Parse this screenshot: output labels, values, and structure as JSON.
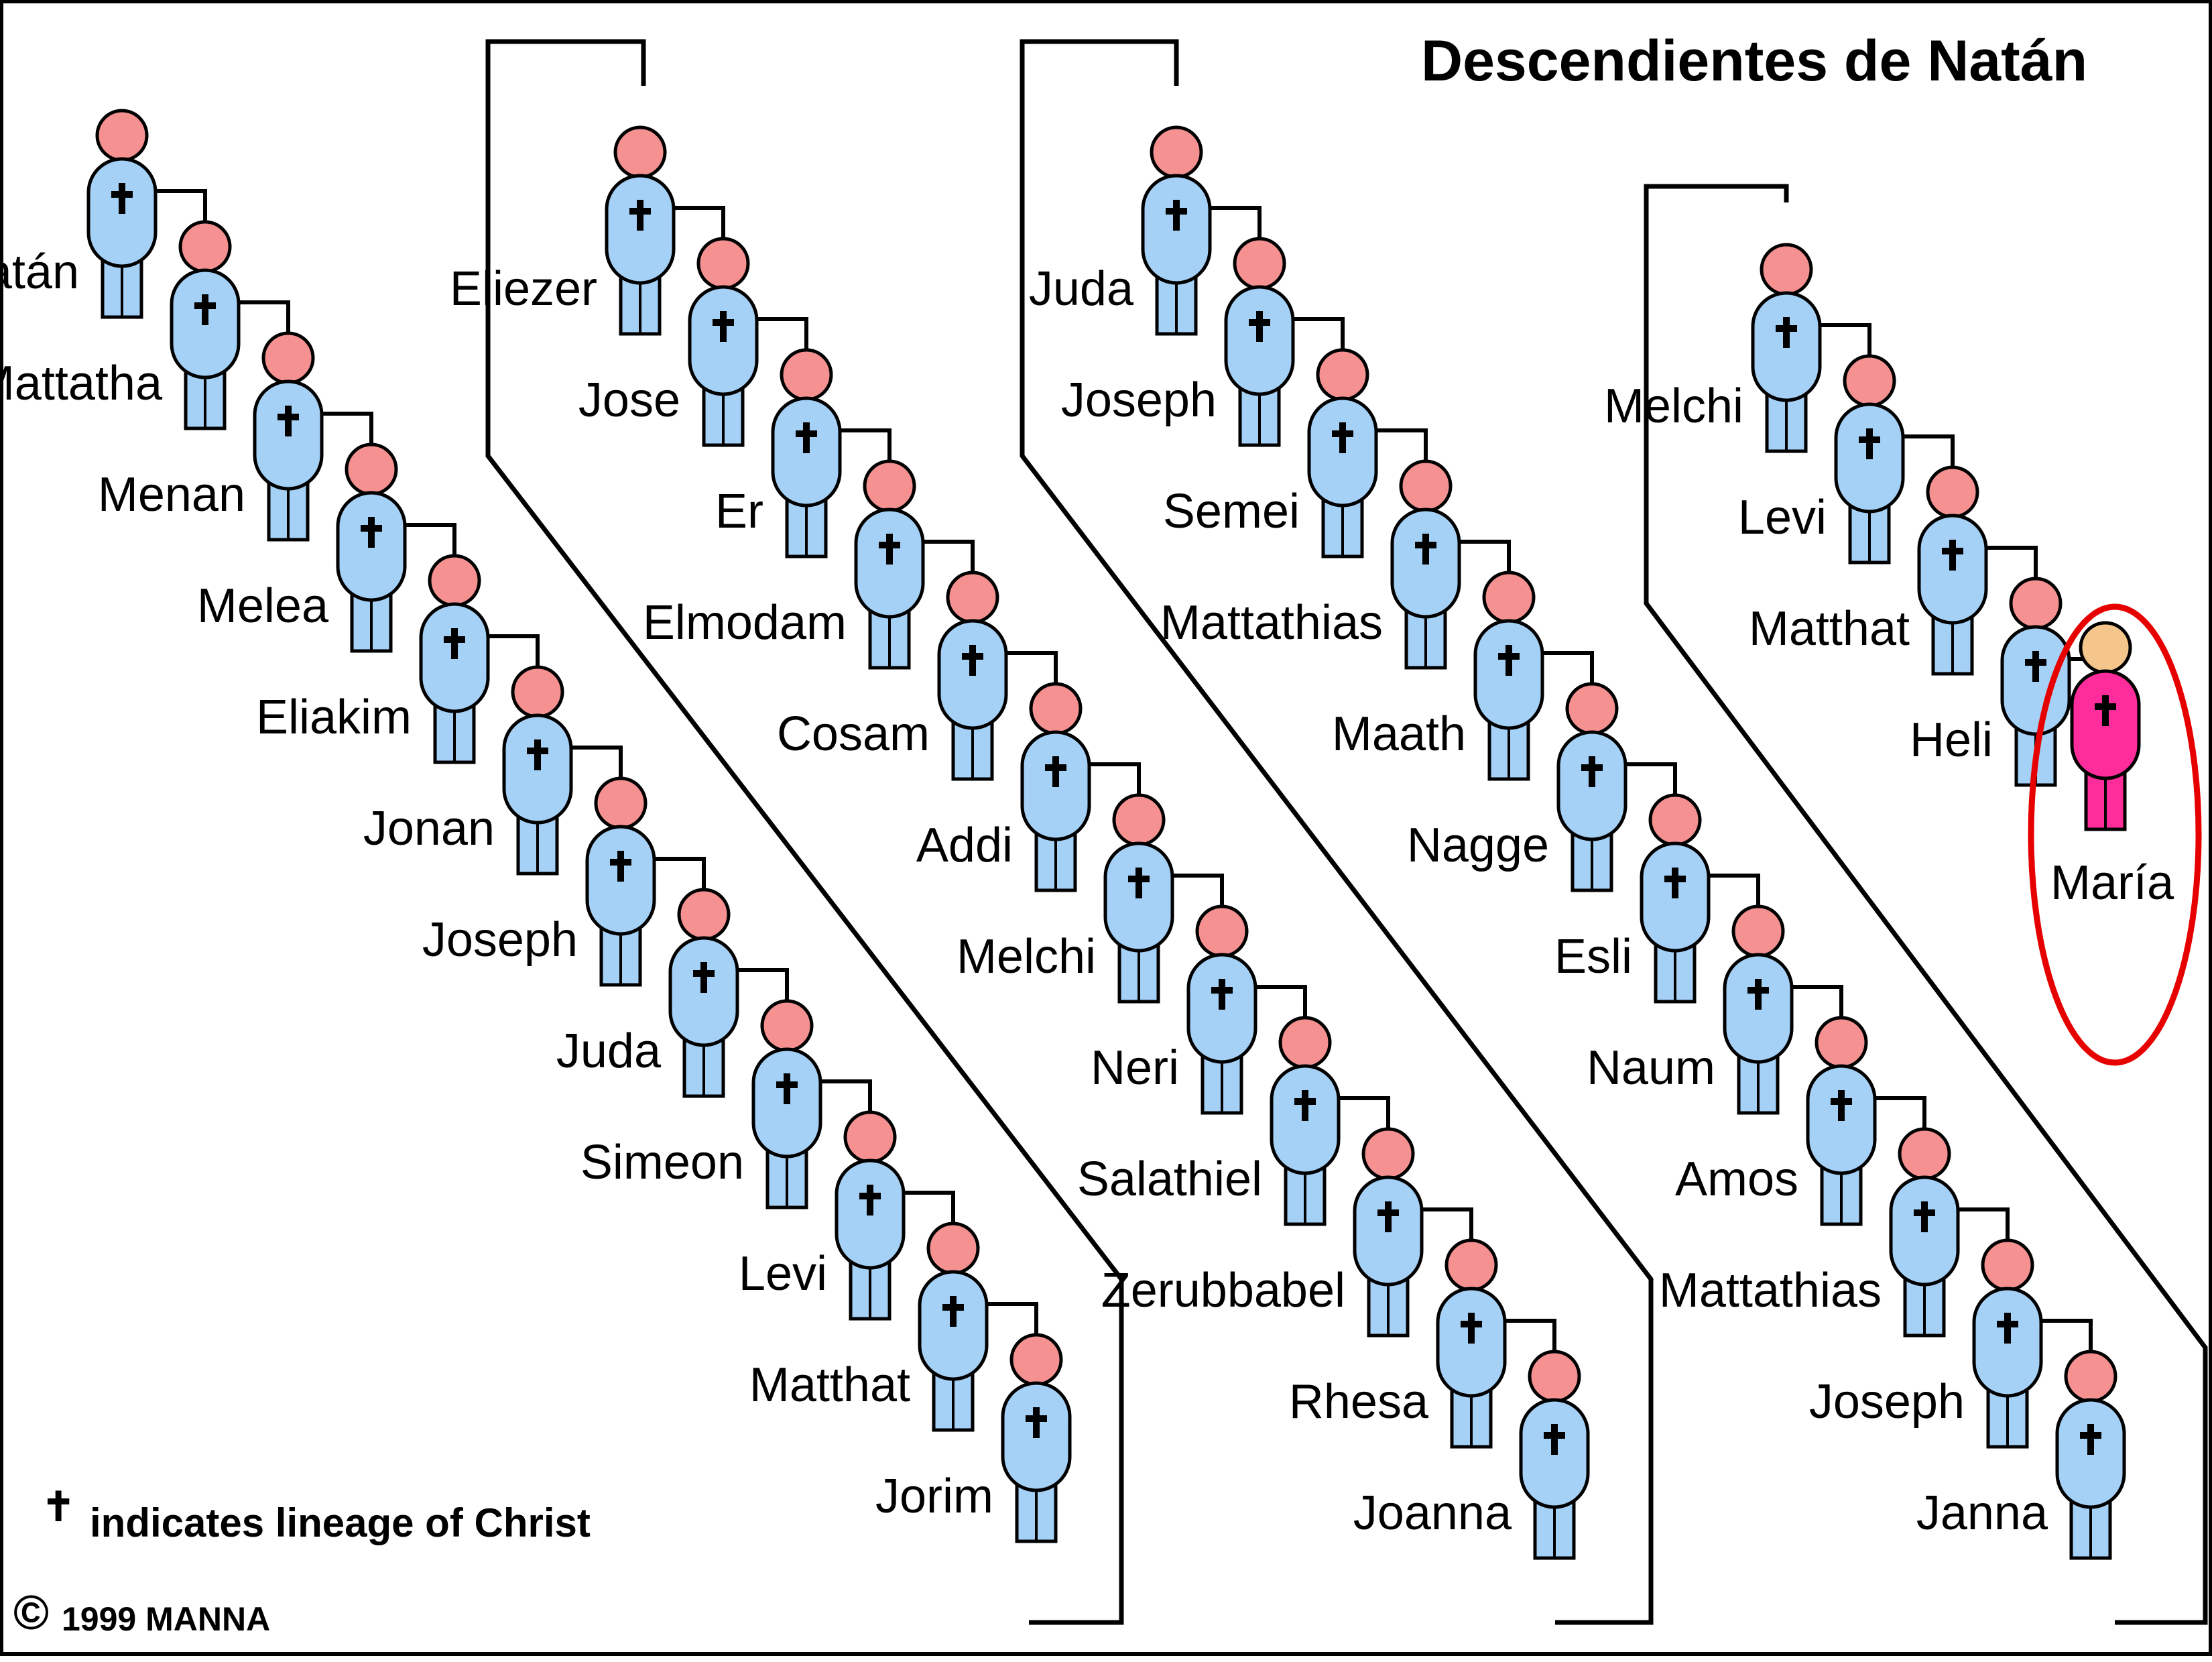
{
  "title": "Descendientes de Natán",
  "legend": {
    "symbol": "✝",
    "text": "indicates lineage of Christ"
  },
  "copyright": {
    "symbol": "©",
    "text": "1999 MANNA"
  },
  "colors": {
    "body": "#a6d1f7",
    "head": "#f59191",
    "highlight_body": "#ff2c9c",
    "highlight_head": "#f5c68c",
    "highlight_ring": "#e60000",
    "line": "#000000"
  },
  "columns": [
    {
      "people": [
        "Natán",
        "Mattatha",
        "Menan",
        "Melea",
        "Eliakim",
        "Jonan",
        "Joseph",
        "Juda",
        "Simeon",
        "Levi",
        "Matthat",
        "Jorim"
      ]
    },
    {
      "people": [
        "Eliezer",
        "Jose",
        "Er",
        "Elmodam",
        "Cosam",
        "Addi",
        "Melchi",
        "Neri",
        "Salathiel",
        "Zerubbabel",
        "Rhesa",
        "Joanna"
      ]
    },
    {
      "people": [
        "Juda",
        "Joseph",
        "Semei",
        "Mattathias",
        "Maath",
        "Nagge",
        "Esli",
        "Naum",
        "Amos",
        "Mattathias",
        "Joseph",
        "Janna"
      ]
    },
    {
      "people": [
        "Melchi",
        "Levi",
        "Matthat",
        "Heli",
        "María"
      ],
      "highlight": "María"
    }
  ]
}
